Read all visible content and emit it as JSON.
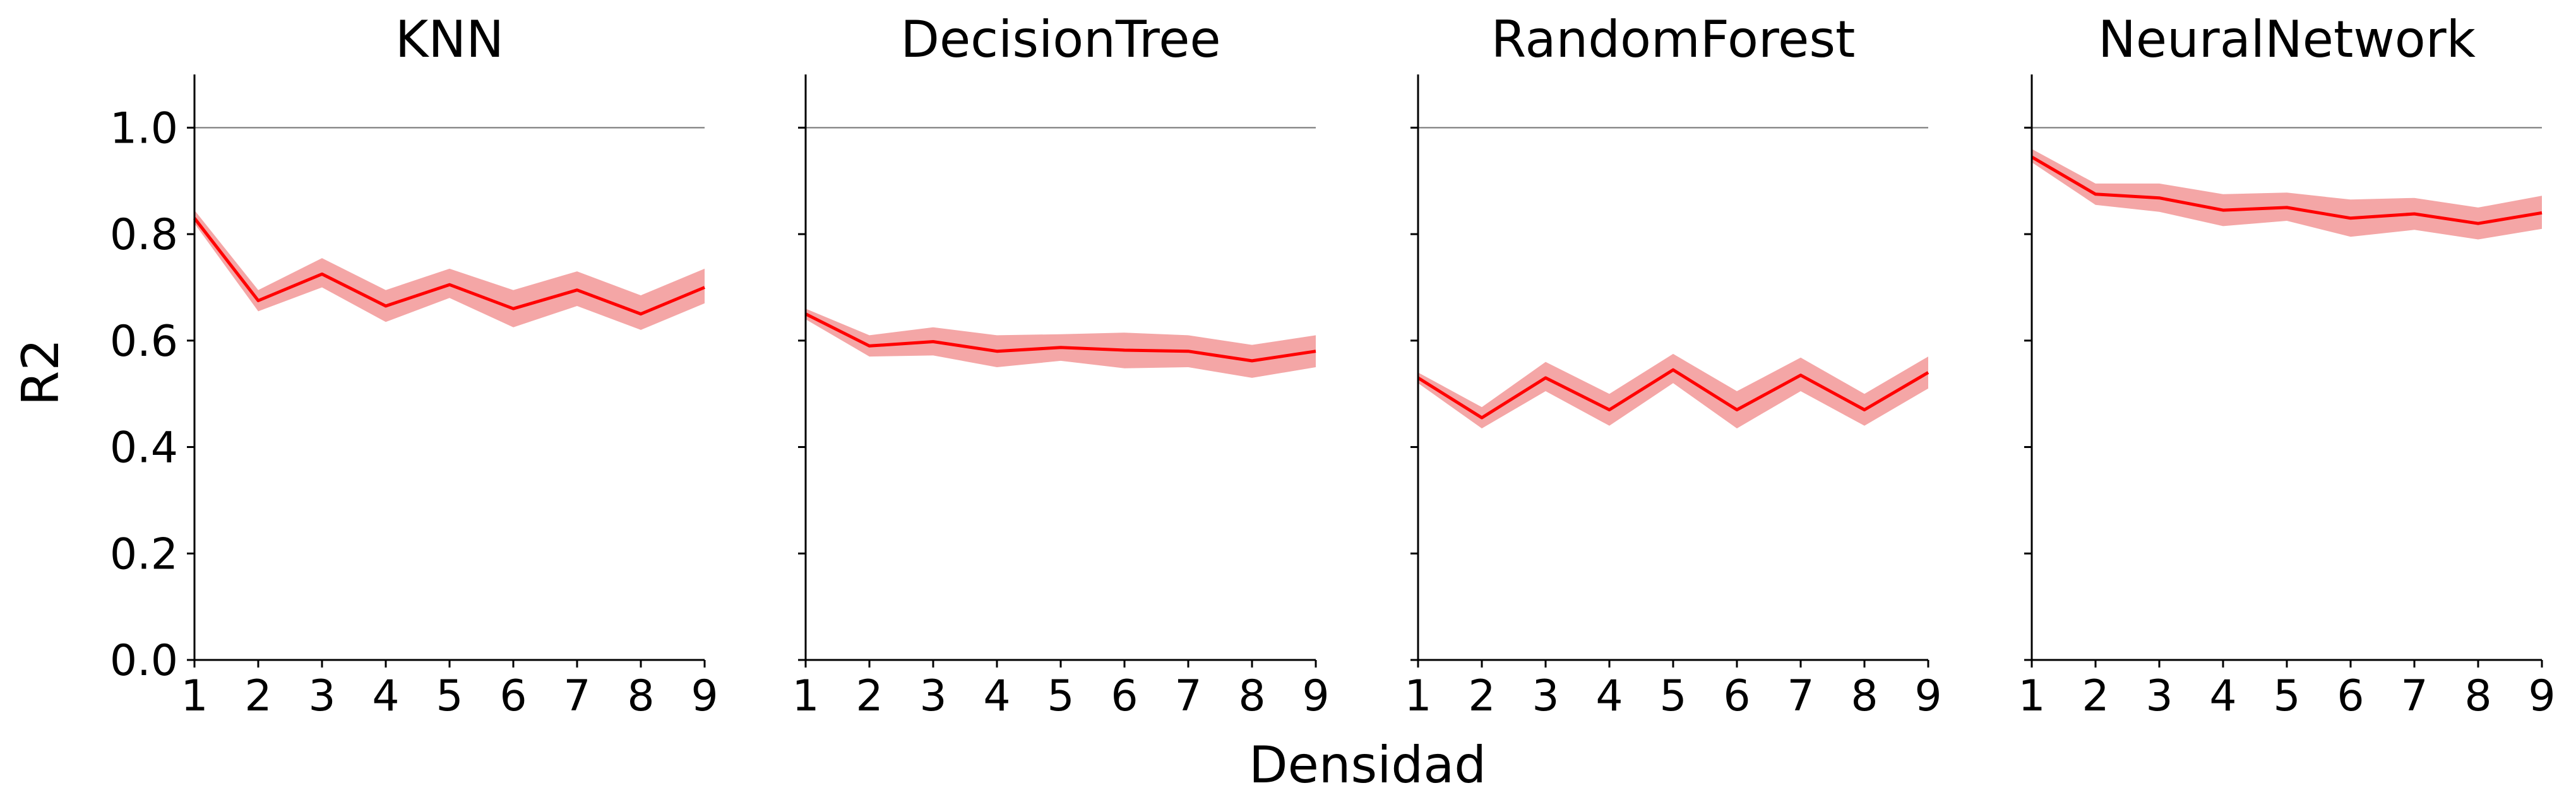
{
  "chart_data": {
    "type": "line",
    "xlabel": "Densidad",
    "ylabel": "R2",
    "xlim": [
      1,
      9
    ],
    "ylim": [
      0.0,
      1.1
    ],
    "x_ticks": [
      "1",
      "2",
      "3",
      "4",
      "5",
      "6",
      "7",
      "8",
      "9"
    ],
    "y_ticks": [
      "0.0",
      "0.2",
      "0.4",
      "0.6",
      "0.8",
      "1.0"
    ],
    "reference_line_y": 1.0,
    "grid": false,
    "colors": {
      "line": "#ff0000",
      "band": "#f4a6a6",
      "reference": "#808080"
    },
    "x": [
      1,
      2,
      3,
      4,
      5,
      6,
      7,
      8,
      9
    ],
    "panels": [
      {
        "title": "KNN",
        "values": [
          0.83,
          0.675,
          0.725,
          0.665,
          0.705,
          0.66,
          0.695,
          0.65,
          0.7
        ],
        "lower": [
          0.82,
          0.655,
          0.7,
          0.635,
          0.68,
          0.625,
          0.665,
          0.62,
          0.67
        ],
        "upper": [
          0.845,
          0.695,
          0.755,
          0.695,
          0.735,
          0.695,
          0.73,
          0.685,
          0.735
        ]
      },
      {
        "title": "DecisionTree",
        "values": [
          0.65,
          0.59,
          0.598,
          0.58,
          0.587,
          0.582,
          0.58,
          0.562,
          0.58
        ],
        "lower": [
          0.64,
          0.57,
          0.572,
          0.55,
          0.562,
          0.548,
          0.55,
          0.53,
          0.55
        ],
        "upper": [
          0.66,
          0.61,
          0.625,
          0.61,
          0.612,
          0.615,
          0.61,
          0.592,
          0.61
        ]
      },
      {
        "title": "RandomForest",
        "values": [
          0.53,
          0.455,
          0.53,
          0.47,
          0.545,
          0.47,
          0.535,
          0.47,
          0.54
        ],
        "lower": [
          0.52,
          0.435,
          0.505,
          0.44,
          0.52,
          0.435,
          0.505,
          0.44,
          0.51
        ],
        "upper": [
          0.54,
          0.475,
          0.56,
          0.5,
          0.575,
          0.505,
          0.568,
          0.5,
          0.57
        ]
      },
      {
        "title": "NeuralNetwork",
        "values": [
          0.945,
          0.875,
          0.868,
          0.845,
          0.85,
          0.83,
          0.838,
          0.82,
          0.84
        ],
        "lower": [
          0.935,
          0.855,
          0.842,
          0.815,
          0.825,
          0.795,
          0.808,
          0.79,
          0.81
        ],
        "upper": [
          0.96,
          0.895,
          0.895,
          0.875,
          0.878,
          0.865,
          0.868,
          0.85,
          0.872
        ]
      }
    ]
  }
}
